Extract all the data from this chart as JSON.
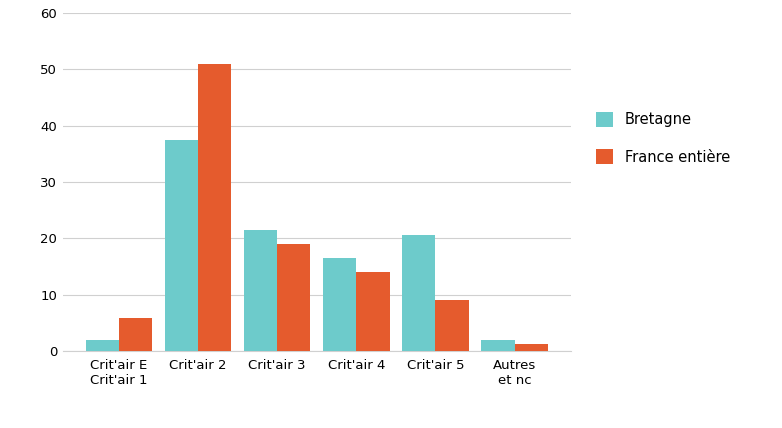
{
  "categories": [
    "Crit'air E\nCrit'air 1",
    "Crit'air 2",
    "Crit'air 3",
    "Crit'air 4",
    "Crit'air 5",
    "Autres\net nc"
  ],
  "bretagne": [
    2.0,
    37.5,
    21.5,
    16.5,
    20.5,
    2.0
  ],
  "france": [
    5.8,
    51.0,
    19.0,
    14.0,
    9.0,
    1.2
  ],
  "color_bretagne": "#6dcbcb",
  "color_france": "#e55b2d",
  "legend_bretagne": "Bretagne",
  "legend_france": "France entière",
  "ylim": [
    0,
    60
  ],
  "yticks": [
    0,
    10,
    20,
    30,
    40,
    50,
    60
  ],
  "background_color": "#ffffff",
  "grid_color": "#d0d0d0",
  "bar_width": 0.42,
  "tick_label_fontsize": 9.5,
  "legend_fontsize": 10.5
}
